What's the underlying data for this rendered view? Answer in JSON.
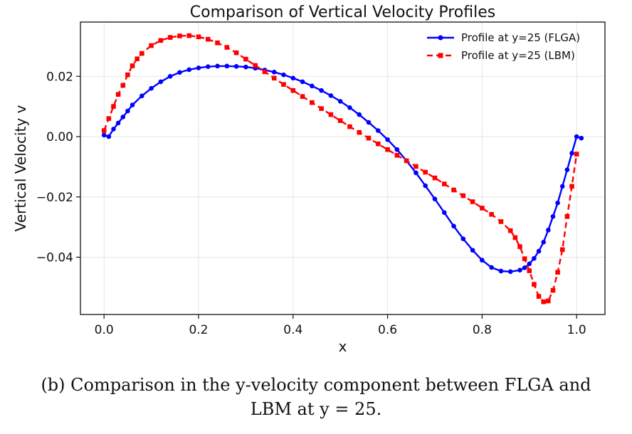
{
  "chart_data": {
    "type": "line",
    "title": "Comparison of Vertical Velocity Profiles",
    "xlabel": "x",
    "ylabel": "Vertical Velocity v",
    "xlim": [
      -0.05,
      1.06
    ],
    "ylim": [
      -0.059,
      0.038
    ],
    "xticks": [
      0.0,
      0.2,
      0.4,
      0.6,
      0.8,
      1.0
    ],
    "xtick_labels": [
      "0.0",
      "0.2",
      "0.4",
      "0.6",
      "0.8",
      "1.0"
    ],
    "yticks": [
      0.02,
      0.0,
      -0.02,
      -0.04
    ],
    "ytick_labels": [
      "0.02",
      "0.00",
      "−0.02",
      "−0.04"
    ],
    "grid": true,
    "legend_position": "top-right",
    "series": [
      {
        "name": "Profile at y=25 (FLGA)",
        "color": "#0000ff",
        "line_style": "solid",
        "marker": "circle",
        "x": [
          0.0,
          0.01,
          0.02,
          0.03,
          0.04,
          0.05,
          0.06,
          0.08,
          0.1,
          0.12,
          0.14,
          0.16,
          0.18,
          0.2,
          0.22,
          0.24,
          0.26,
          0.28,
          0.3,
          0.32,
          0.34,
          0.36,
          0.38,
          0.4,
          0.42,
          0.44,
          0.46,
          0.48,
          0.5,
          0.52,
          0.54,
          0.56,
          0.58,
          0.6,
          0.62,
          0.64,
          0.66,
          0.68,
          0.7,
          0.72,
          0.74,
          0.76,
          0.78,
          0.8,
          0.82,
          0.84,
          0.86,
          0.88,
          0.89,
          0.9,
          0.91,
          0.92,
          0.93,
          0.94,
          0.95,
          0.96,
          0.97,
          0.98,
          0.99,
          1.0,
          1.01
        ],
        "y": [
          0.0005,
          0.0,
          0.0025,
          0.0045,
          0.0065,
          0.0085,
          0.0105,
          0.0135,
          0.016,
          0.0182,
          0.02,
          0.0213,
          0.0222,
          0.0228,
          0.0232,
          0.0234,
          0.0234,
          0.0233,
          0.0231,
          0.0227,
          0.0221,
          0.0214,
          0.0205,
          0.0194,
          0.0182,
          0.0168,
          0.0153,
          0.0136,
          0.0117,
          0.0096,
          0.0073,
          0.0047,
          0.002,
          -0.001,
          -0.0043,
          -0.008,
          -0.012,
          -0.0163,
          -0.0207,
          -0.0252,
          -0.0297,
          -0.0339,
          -0.0377,
          -0.041,
          -0.0434,
          -0.0446,
          -0.0448,
          -0.0443,
          -0.0435,
          -0.0422,
          -0.0404,
          -0.038,
          -0.035,
          -0.031,
          -0.0265,
          -0.022,
          -0.0165,
          -0.011,
          -0.0055,
          0.0,
          -0.0005
        ]
      },
      {
        "name": "Profile at y=25 (LBM)",
        "color": "#ff0000",
        "line_style": "dashed",
        "marker": "square",
        "x": [
          0.0,
          0.01,
          0.02,
          0.03,
          0.04,
          0.05,
          0.06,
          0.07,
          0.08,
          0.1,
          0.12,
          0.14,
          0.16,
          0.18,
          0.2,
          0.22,
          0.24,
          0.26,
          0.28,
          0.3,
          0.32,
          0.34,
          0.36,
          0.38,
          0.4,
          0.42,
          0.44,
          0.46,
          0.48,
          0.5,
          0.52,
          0.54,
          0.56,
          0.58,
          0.6,
          0.62,
          0.64,
          0.66,
          0.68,
          0.7,
          0.72,
          0.74,
          0.76,
          0.78,
          0.8,
          0.82,
          0.84,
          0.86,
          0.87,
          0.88,
          0.89,
          0.9,
          0.91,
          0.92,
          0.93,
          0.94,
          0.95,
          0.96,
          0.97,
          0.98,
          0.99,
          1.0
        ],
        "y": [
          0.002,
          0.006,
          0.01,
          0.014,
          0.017,
          0.0205,
          0.0235,
          0.0258,
          0.0276,
          0.0302,
          0.0319,
          0.0329,
          0.0334,
          0.0335,
          0.0331,
          0.0323,
          0.0311,
          0.0296,
          0.0278,
          0.0257,
          0.0236,
          0.0215,
          0.0194,
          0.0173,
          0.0153,
          0.0133,
          0.0113,
          0.0093,
          0.0073,
          0.0053,
          0.0033,
          0.0014,
          -0.0005,
          -0.0024,
          -0.0043,
          -0.0062,
          -0.008,
          -0.0099,
          -0.0118,
          -0.0137,
          -0.0157,
          -0.0177,
          -0.0196,
          -0.0216,
          -0.0237,
          -0.0258,
          -0.0282,
          -0.0312,
          -0.0335,
          -0.0365,
          -0.0405,
          -0.0445,
          -0.049,
          -0.053,
          -0.0548,
          -0.0545,
          -0.051,
          -0.045,
          -0.0375,
          -0.0265,
          -0.0165,
          -0.0058
        ]
      }
    ]
  },
  "caption": {
    "line1": "(b) Comparison in the y-velocity component between FLGA and",
    "line2": "LBM at y = 25."
  }
}
